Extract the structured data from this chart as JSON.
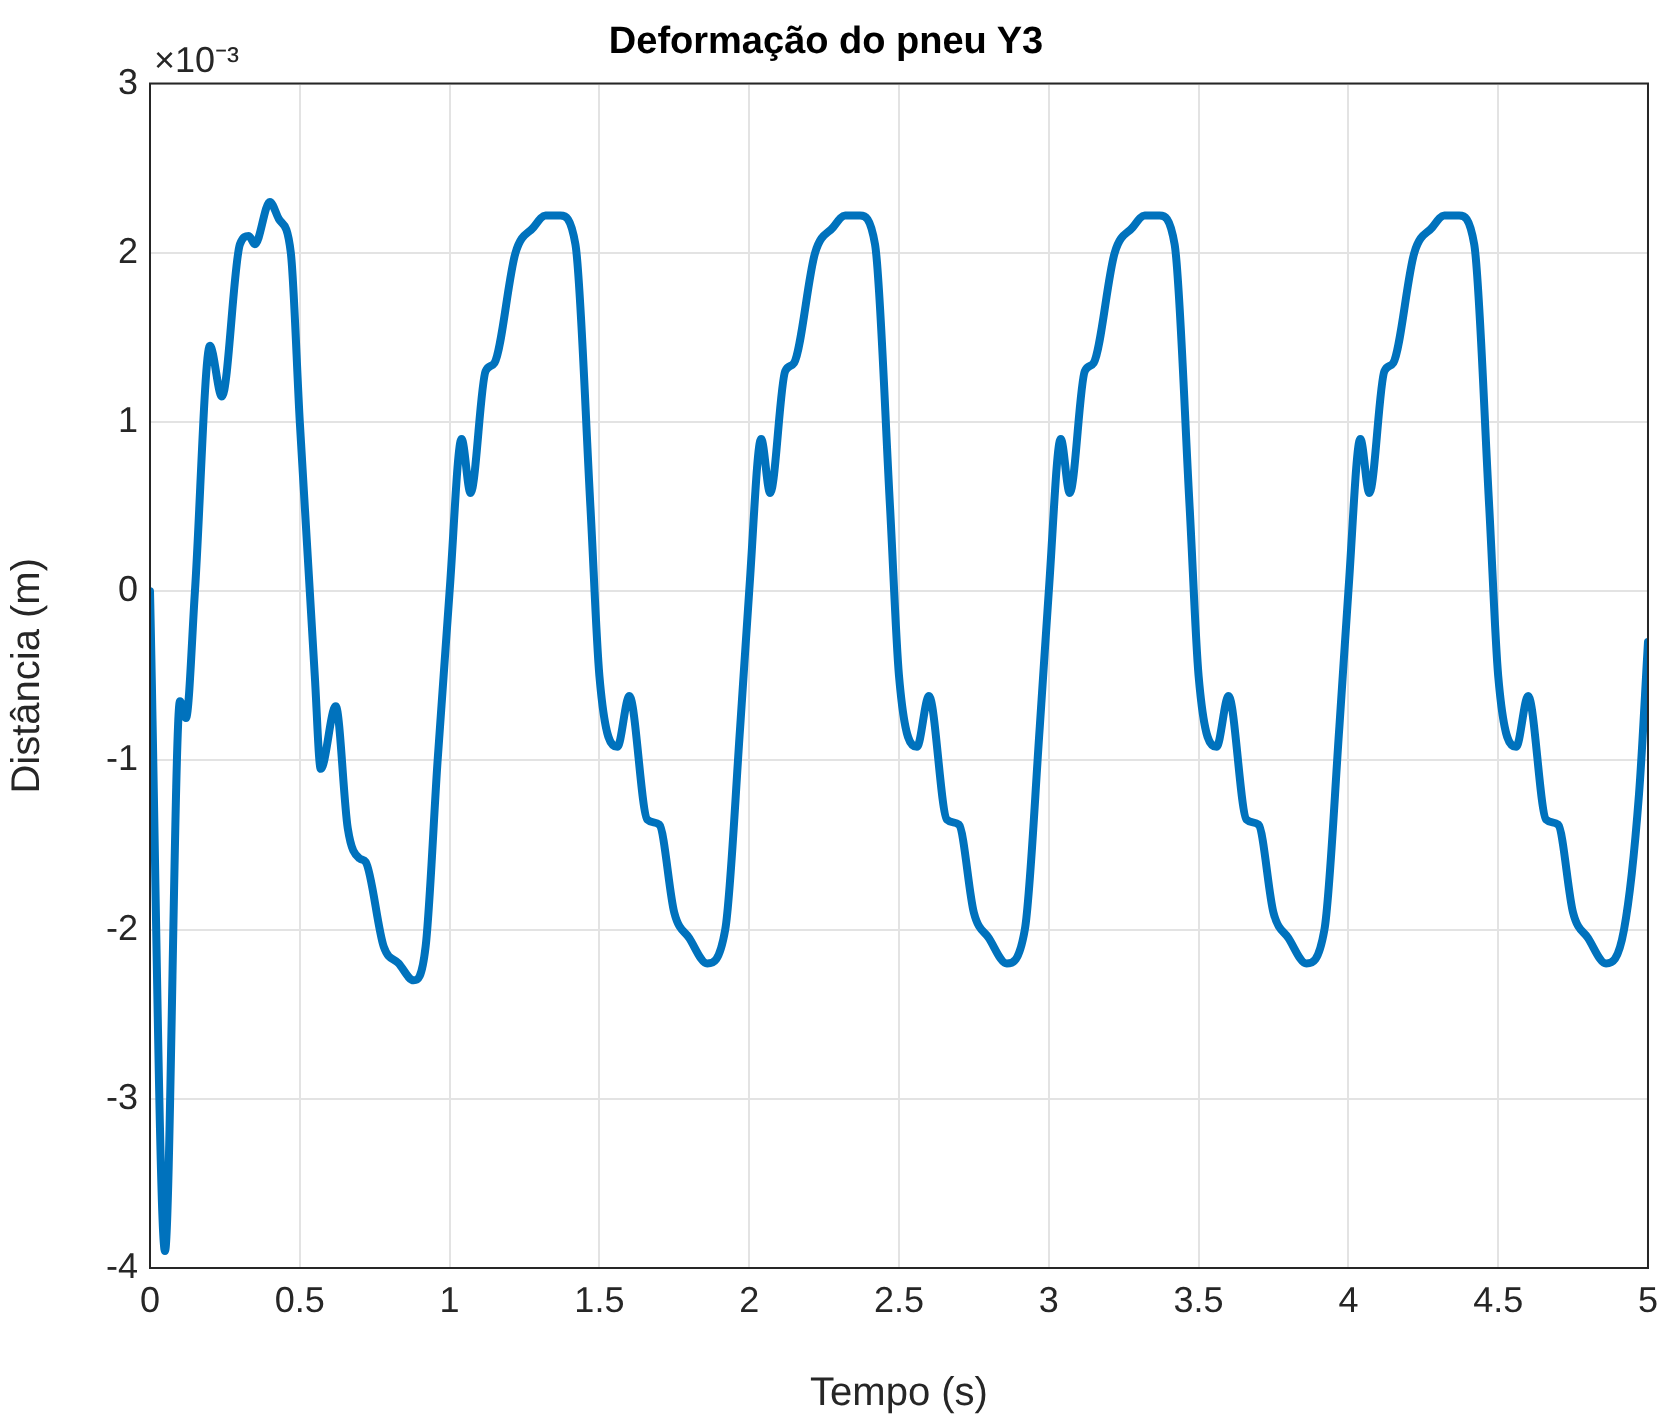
{
  "chart_data": {
    "type": "line",
    "title": "Deformação do pneu Y3",
    "xlabel": "Tempo (s)",
    "ylabel": "Distância (m)",
    "annotations": [
      "×10⁻³"
    ],
    "x": [
      0,
      0.05,
      0.1,
      0.12,
      0.15,
      0.2,
      0.24,
      0.3,
      0.33,
      0.35,
      0.4,
      0.43,
      0.47,
      0.5,
      0.55,
      0.57,
      0.62,
      0.66,
      0.7,
      0.72,
      0.78,
      0.83,
      0.88,
      0.92,
      0.96,
      1,
      1.04,
      1.07,
      1.12,
      1.15,
      1.22,
      1.28,
      1.32,
      1.37,
      1.42,
      1.47,
      1.5,
      1.56,
      1.6,
      1.66,
      1.7,
      1.75,
      1.8,
      1.86,
      1.92,
      1.97,
      2,
      2.04,
      2.07,
      2.12,
      2.15,
      2.22,
      2.28,
      2.32,
      2.37,
      2.42,
      2.47,
      2.5,
      2.56,
      2.6,
      2.66,
      2.7,
      2.75,
      2.8,
      2.86,
      2.92,
      2.97,
      3,
      3.04,
      3.07,
      3.12,
      3.15,
      3.22,
      3.28,
      3.32,
      3.37,
      3.42,
      3.47,
      3.5,
      3.56,
      3.6,
      3.66,
      3.7,
      3.75,
      3.8,
      3.86,
      3.92,
      3.97,
      4,
      4.04,
      4.07,
      4.12,
      4.15,
      4.22,
      4.28,
      4.32,
      4.37,
      4.42,
      4.47,
      4.5,
      4.56,
      4.6,
      4.66,
      4.7,
      4.75,
      4.8,
      4.86,
      4.92,
      4.97,
      5
    ],
    "series": [
      {
        "color": "#0072bd",
        "values": [
          0,
          -3.9,
          -0.65,
          -0.75,
          0,
          1.45,
          1.15,
          2.05,
          2.1,
          2.05,
          2.3,
          2.2,
          2.0,
          1.0,
          -0.5,
          -1.05,
          -0.68,
          -1.4,
          -1.58,
          -1.6,
          -2.1,
          -2.2,
          -2.3,
          -2.1,
          -1.0,
          0,
          0.9,
          0.58,
          1.3,
          1.35,
          2.0,
          2.15,
          2.22,
          2.22,
          2.05,
          0.5,
          -0.5,
          -0.92,
          -0.62,
          -1.35,
          -1.38,
          -1.9,
          -2.05,
          -2.2,
          -2.0,
          -0.8,
          0,
          0.9,
          0.58,
          1.3,
          1.35,
          2.0,
          2.15,
          2.22,
          2.22,
          2.05,
          0.5,
          -0.5,
          -0.92,
          -0.62,
          -1.35,
          -1.38,
          -1.9,
          -2.05,
          -2.2,
          -2.0,
          -0.8,
          0,
          0.9,
          0.58,
          1.3,
          1.35,
          2.0,
          2.15,
          2.22,
          2.22,
          2.05,
          0.5,
          -0.5,
          -0.92,
          -0.62,
          -1.35,
          -1.38,
          -1.9,
          -2.05,
          -2.2,
          -2.0,
          -0.8,
          0,
          0.9,
          0.58,
          1.3,
          1.35,
          2.0,
          2.15,
          2.22,
          2.22,
          2.05,
          0.5,
          -0.5,
          -0.92,
          -0.62,
          -1.35,
          -1.38,
          -1.9,
          -2.05,
          -2.2,
          -2.0,
          -1.2,
          -0.3
        ]
      }
    ],
    "xlim": [
      0,
      5
    ],
    "xticks": [
      0,
      0.5,
      1,
      1.5,
      2,
      2.5,
      3,
      3.5,
      4,
      4.5,
      5
    ],
    "ylim": [
      -4,
      3
    ],
    "yticks": [
      -4,
      -3,
      -2,
      -1,
      0,
      1,
      2,
      3
    ],
    "grid": true
  }
}
